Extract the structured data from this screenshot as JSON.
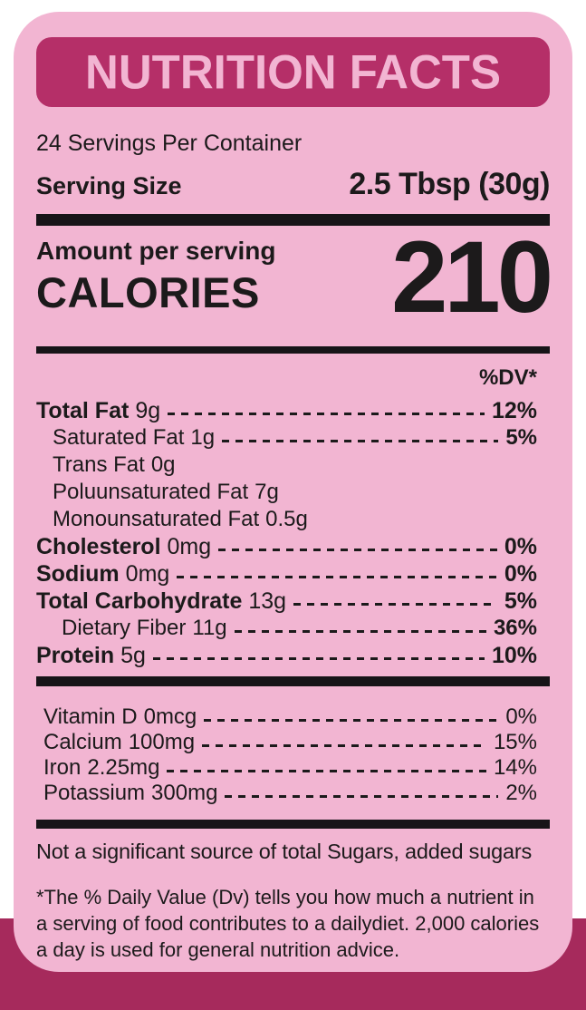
{
  "colors": {
    "card_pink": "#f2b5d2",
    "banner_magenta": "#b52f68",
    "bottom_band": "#a62a5c",
    "text_ink": "#1c1a1b"
  },
  "header": {
    "title": "NUTRITION FACTS"
  },
  "serving": {
    "per_container": "24 Servings Per Container",
    "size_label": "Serving Size",
    "size_value": "2.5 Tbsp (30g)"
  },
  "calories": {
    "amount_label": "Amount per serving",
    "label": "CALORIES",
    "value": "210"
  },
  "table": {
    "dv_header": "%DV*",
    "nutrients": [
      {
        "name": "Total Fat",
        "amount": "9g",
        "pct": "12%",
        "name_bold": true,
        "pct_bold": true,
        "indent": 0
      },
      {
        "name": "Saturated Fat",
        "amount": "1g",
        "pct": "5%",
        "name_bold": false,
        "pct_bold": true,
        "indent": 1
      },
      {
        "name": "Trans Fat",
        "amount": "0g",
        "pct": "",
        "name_bold": false,
        "pct_bold": false,
        "indent": 1
      },
      {
        "name": "Poluunsaturated Fat",
        "amount": "7g",
        "pct": "",
        "name_bold": false,
        "pct_bold": false,
        "indent": 1
      },
      {
        "name": "Monounsaturated Fat",
        "amount": "0.5g",
        "pct": "",
        "name_bold": false,
        "pct_bold": false,
        "indent": 1
      },
      {
        "name": "Cholesterol",
        "amount": "0mg",
        "pct": "0%",
        "name_bold": true,
        "pct_bold": true,
        "indent": 0
      },
      {
        "name": "Sodium",
        "amount": "0mg",
        "pct": "0%",
        "name_bold": true,
        "pct_bold": true,
        "indent": 0
      },
      {
        "name": "Total Carbohydrate",
        "amount": "13g",
        "pct": "5%",
        "name_bold": true,
        "pct_bold": true,
        "indent": 0
      },
      {
        "name": "Dietary Fiber",
        "amount": "11g",
        "pct": "36%",
        "name_bold": false,
        "pct_bold": true,
        "indent": 2
      },
      {
        "name": "Protein",
        "amount": "5g",
        "pct": "10%",
        "name_bold": true,
        "pct_bold": true,
        "indent": 0
      }
    ],
    "vitamins": [
      {
        "name": "Vitamin D",
        "amount": "0mcg",
        "pct": "0%",
        "name_bold": false,
        "pct_bold": false,
        "indent": 0
      },
      {
        "name": "Calcium",
        "amount": "100mg",
        "pct": "15%",
        "name_bold": false,
        "pct_bold": false,
        "indent": 0
      },
      {
        "name": "Iron",
        "amount": "2.25mg",
        "pct": "14%",
        "name_bold": false,
        "pct_bold": false,
        "indent": 0
      },
      {
        "name": "Potassium",
        "amount": "300mg",
        "pct": "2%",
        "name_bold": false,
        "pct_bold": false,
        "indent": 0
      }
    ]
  },
  "notes": {
    "not_significant": "Not a significant source of total Sugars, added sugars",
    "footnote": "*The % Daily Value (Dv) tells you how much a nutrient in a serving of food contributes to a dailydiet. 2,000 calories a day is used for general nutrition advice."
  }
}
